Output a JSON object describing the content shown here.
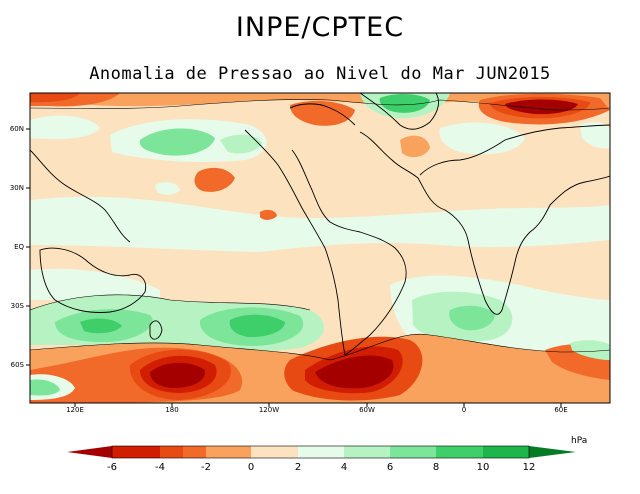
{
  "header": {
    "organization": "INPE/CPTEC",
    "subtitle": "Anomalia de Pressao ao Nivel do Mar JUN2015"
  },
  "map": {
    "variable": "Sea level pressure anomaly",
    "projection": "equirectangular",
    "latitude_labels": [
      "60N",
      "30N",
      "EQ",
      "30S",
      "60S"
    ],
    "longitude_labels": [
      "120E",
      "180",
      "120W",
      "60W",
      "0",
      "60E"
    ],
    "notable_features": [
      {
        "region": "South Pacific near New Zealand/east",
        "sign": "negative",
        "magnitude_hPa": -6
      },
      {
        "region": "South Pacific/Southern Ocean west of Chile",
        "sign": "negative",
        "magnitude_hPa": -6
      },
      {
        "region": "Southern Ocean south of Australia",
        "sign": "positive",
        "magnitude_hPa": 6
      },
      {
        "region": "Central South Pacific",
        "sign": "positive",
        "magnitude_hPa": 8
      },
      {
        "region": "North Siberia/Arctic",
        "sign": "negative",
        "magnitude_hPa": -6
      },
      {
        "region": "Greenland",
        "sign": "positive",
        "magnitude_hPa": 4
      },
      {
        "region": "South Atlantic",
        "sign": "positive",
        "magnitude_hPa": 4
      }
    ]
  },
  "colorbar": {
    "unit": "hPa",
    "ticks": [
      "-6",
      "-4",
      "-2",
      "0",
      "2",
      "4",
      "6",
      "8",
      "10",
      "12"
    ],
    "colors": {
      "lt_-6": "#a50000",
      "-6_-5": "#d21e00",
      "-5_-4": "#e84a14",
      "-4_-3": "#f26a2a",
      "-3_-2": "#f9a25e",
      "-2_0": "#fde2bf",
      "0_2": "#e6fbe9",
      "2_4": "#b7f3c2",
      "4_6": "#7de59a",
      "6_8": "#3fcf6a",
      "8_10": "#1eb64a",
      "10_12": "#0c9e32",
      "gt_12": "#067b25"
    }
  }
}
